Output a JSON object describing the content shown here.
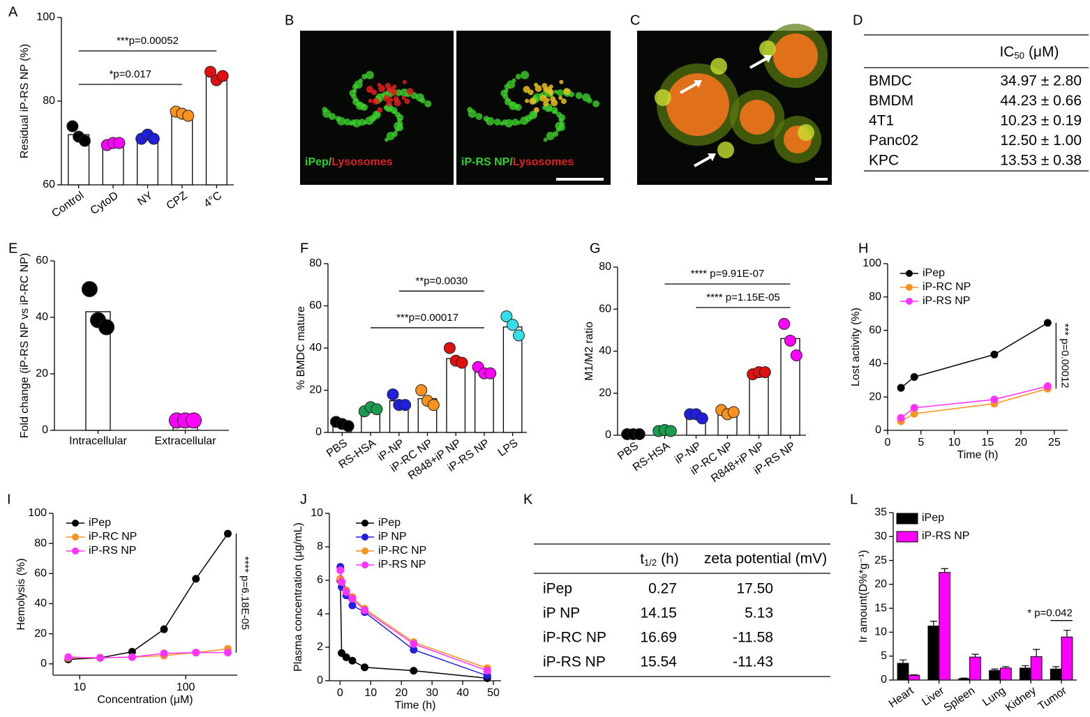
{
  "chart_data": [
    {
      "panel": "A",
      "type": "bar",
      "ylabel": "Residual iP-RS NP (%)",
      "categories": [
        "Control",
        "CytoD",
        "NY",
        "CPZ",
        "4°C"
      ],
      "values": [
        72,
        70,
        71.5,
        77,
        86
      ],
      "points": [
        [
          74,
          71.5,
          70.5
        ],
        [
          69.5,
          70,
          70
        ],
        [
          71,
          72,
          71
        ],
        [
          77.5,
          77,
          76.5
        ],
        [
          87,
          85,
          86
        ]
      ],
      "colors": [
        "#000000",
        "#ff00ff",
        "#1f1fdd",
        "#f7931e",
        "#e01010"
      ],
      "ylim": [
        60,
        100
      ],
      "yticks": [
        60,
        80,
        100
      ],
      "annotations": [
        {
          "text": "*p=0.017",
          "from": 0,
          "to": 3,
          "y": 84
        },
        {
          "text": "***p=0.00052",
          "from": 0,
          "to": 4,
          "y": 92
        }
      ]
    },
    {
      "panel": "E",
      "type": "bar",
      "ylabel": "Fold change (iP-RS NP vs iP-RC NP)",
      "categories": [
        "Intracellular",
        "Extracellular"
      ],
      "values": [
        42,
        3.5
      ],
      "points": [
        [
          50,
          39,
          36.5
        ],
        [
          3.5,
          3.5,
          3.5
        ]
      ],
      "colors": [
        "#000000",
        "#ff00ff"
      ],
      "ylim": [
        0,
        60
      ],
      "yticks": [
        0,
        20,
        40,
        60
      ]
    },
    {
      "panel": "F",
      "type": "bar",
      "ylabel": "% BMDC mature",
      "categories": [
        "PBS",
        "RS-HSA",
        "iP-NP",
        "iP-RC NP",
        "R848+iP NP",
        "iP-RS NP",
        "LPS"
      ],
      "values": [
        4,
        11,
        15,
        16,
        35,
        29,
        50
      ],
      "points": [
        [
          5,
          4,
          3
        ],
        [
          10,
          12,
          11
        ],
        [
          18,
          13,
          13
        ],
        [
          20,
          15,
          13
        ],
        [
          40,
          34,
          33
        ],
        [
          31,
          28,
          28
        ],
        [
          55,
          51,
          46
        ]
      ],
      "colors": [
        "#000000",
        "#1a9c50",
        "#1f1fdd",
        "#f7931e",
        "#e01010",
        "#ff00ff",
        "#33e0e8"
      ],
      "ylim": [
        0,
        80
      ],
      "yticks": [
        0,
        20,
        40,
        60,
        80
      ],
      "annotations": [
        {
          "text": "**p=0.0030",
          "from": 2,
          "to": 5,
          "y": 67
        },
        {
          "text": "***p=0.00017",
          "from": 1,
          "to": 5,
          "y": 49.6
        }
      ]
    },
    {
      "panel": "G",
      "type": "bar",
      "ylabel": "M1/M2 ratio",
      "categories": [
        "PBS",
        "RS-HSA",
        "iP-NP",
        "iP-RC NP",
        "R848+iP NP",
        "iP-RS NP"
      ],
      "values": [
        0.5,
        2,
        9,
        11,
        29,
        46
      ],
      "points": [
        [
          0.5,
          0.5,
          0.5
        ],
        [
          2,
          2.5,
          2
        ],
        [
          10,
          10,
          8
        ],
        [
          12,
          10,
          11
        ],
        [
          29,
          30,
          30
        ],
        [
          53,
          45,
          38
        ]
      ],
      "colors": [
        "#000000",
        "#1a9c50",
        "#1f1fdd",
        "#f7931e",
        "#e01010",
        "#ff00ff"
      ],
      "ylim": [
        0,
        80
      ],
      "yticks": [
        0,
        20,
        40,
        60,
        80
      ],
      "annotations": [
        {
          "text": "**** p=9.91E-07",
          "from": 1,
          "to": 5,
          "y": 72
        },
        {
          "text": "**** p=1.15E-05",
          "from": 2,
          "to": 5,
          "y": 60.8
        }
      ]
    },
    {
      "panel": "H",
      "type": "line",
      "xlabel": "Time (h)",
      "ylabel": "Lost activity (%)",
      "x": [
        2,
        4,
        16,
        24
      ],
      "series": [
        {
          "name": "iPep",
          "color": "#000000",
          "values": [
            25.5,
            32,
            45.5,
            64.5
          ]
        },
        {
          "name": "iP-RC NP",
          "color": "#f7931e",
          "values": [
            5.5,
            10,
            16,
            25
          ]
        },
        {
          "name": "iP-RS NP",
          "color": "#ff33ff",
          "values": [
            7.5,
            13.5,
            18.5,
            26.5
          ]
        }
      ],
      "xlim": [
        0,
        27
      ],
      "xticks": [
        0,
        5,
        10,
        15,
        20,
        25
      ],
      "ylim": [
        0,
        100
      ],
      "yticks": [
        0,
        20,
        40,
        60,
        80,
        100
      ],
      "legend": "upper left",
      "annotations": [
        {
          "text": "*** p=0.00012"
        }
      ]
    },
    {
      "panel": "I",
      "type": "line",
      "xscale": "log",
      "xlabel": "Concentration (μM)",
      "ylabel": "Hemolysis (%)",
      "x": [
        7.8,
        15.6,
        31.25,
        62.5,
        125,
        250
      ],
      "series": [
        {
          "name": "iPep",
          "color": "#000000",
          "values": [
            3,
            4,
            8,
            23,
            56.5,
            86.5
          ]
        },
        {
          "name": "iP-RC NP",
          "color": "#f7931e",
          "values": [
            4,
            4,
            4.5,
            5.5,
            7.5,
            10
          ]
        },
        {
          "name": "iP-RS NP",
          "color": "#ff33ff",
          "values": [
            4.5,
            4,
            4.5,
            7,
            7.5,
            7.5
          ]
        }
      ],
      "xlim": [
        5.6,
        307
      ],
      "xticks": [
        10,
        100
      ],
      "ylim": [
        -7.5,
        100
      ],
      "yticks": [
        0,
        20,
        40,
        60,
        80,
        100
      ],
      "legend": "upper left",
      "annotations": [
        {
          "text": "**** p=6.18E-05"
        }
      ]
    },
    {
      "panel": "J",
      "type": "line",
      "xlabel": "Time (h)",
      "ylabel": "Plasma concentration (μg/mL)",
      "x": [
        0.083,
        0.5,
        2,
        4,
        8,
        24,
        48
      ],
      "series": [
        {
          "name": "iPep",
          "color": "#000000",
          "values": [
            6.0,
            1.65,
            1.4,
            1.2,
            0.8,
            0.6,
            0.15
          ]
        },
        {
          "name": "iP NP",
          "color": "#1f1fdd",
          "values": [
            6.8,
            5.6,
            5.1,
            4.5,
            4.1,
            1.85,
            0.3
          ]
        },
        {
          "name": "iP-RC NP",
          "color": "#f7931e",
          "values": [
            6.1,
            5.9,
            5.4,
            5.0,
            4.3,
            2.3,
            0.75
          ]
        },
        {
          "name": "iP-RS NP",
          "color": "#ff33ff",
          "values": [
            6.6,
            5.9,
            5.3,
            4.9,
            4.2,
            2.2,
            0.6
          ]
        }
      ],
      "xlim": [
        -3.5,
        52.5
      ],
      "xticks": [
        0,
        10,
        20,
        30,
        40,
        50
      ],
      "ylim": [
        0,
        10
      ],
      "yticks": [
        0,
        2,
        4,
        6,
        8,
        10
      ],
      "legend": "upper left"
    },
    {
      "panel": "L",
      "type": "groupedbar",
      "ylabel": "Ir amount(D%*g⁻¹)",
      "categories": [
        "Heart",
        "Liver",
        "Spleen",
        "Lung",
        "Kidney",
        "Tumor"
      ],
      "series": [
        {
          "name": "iPep",
          "color": "#000000",
          "values": [
            3.5,
            11.3,
            0.3,
            2,
            2.5,
            2.3
          ],
          "errors": [
            0.7,
            1,
            0.1,
            0.3,
            0.5,
            0.5
          ]
        },
        {
          "name": "iP-RS NP",
          "color": "#ff00ff",
          "values": [
            1,
            22.5,
            4.8,
            2.5,
            4.9,
            9
          ],
          "errors": [
            0.1,
            0.8,
            0.6,
            0.3,
            1.5,
            1.4
          ]
        }
      ],
      "ylim": [
        0,
        35
      ],
      "yticks": [
        0,
        5,
        10,
        15,
        20,
        25,
        30,
        35
      ],
      "legend": "upper left",
      "annotations": [
        {
          "text": "* p=0.042"
        }
      ]
    }
  ],
  "images": [
    {
      "panel": "B",
      "panes": [
        {
          "label": [
            "iPep/",
            "Lysosomes"
          ]
        },
        {
          "label": [
            "iP-RS NP/",
            "Lysosomes"
          ]
        }
      ]
    },
    {
      "panel": "C"
    }
  ],
  "tables": [
    {
      "panel": "D",
      "columns": [
        {
          "main": "IC",
          "sub": "50",
          "rest": "(μM)"
        }
      ],
      "rows": [
        [
          "BMDC",
          "34.97 ± 2.80"
        ],
        [
          "BMDM",
          "44.23 ± 0.66"
        ],
        [
          "4T1",
          "10.23 ± 0.19"
        ],
        [
          "Panc02",
          "12.50 ± 1.00"
        ],
        [
          "KPC",
          "13.53 ± 0.38"
        ]
      ]
    },
    {
      "panel": "K",
      "columns": [
        {
          "main": "t",
          "sub": "1/2",
          "rest": "(h)"
        },
        "zeta potential (mV)"
      ],
      "rows": [
        [
          "iPep",
          "0.27",
          "17.50"
        ],
        [
          "iP NP",
          "14.15",
          "5.13"
        ],
        [
          "iP-RC NP",
          "16.69",
          "-11.58"
        ],
        [
          "iP-RS NP",
          "15.54",
          "-11.43"
        ]
      ]
    }
  ]
}
